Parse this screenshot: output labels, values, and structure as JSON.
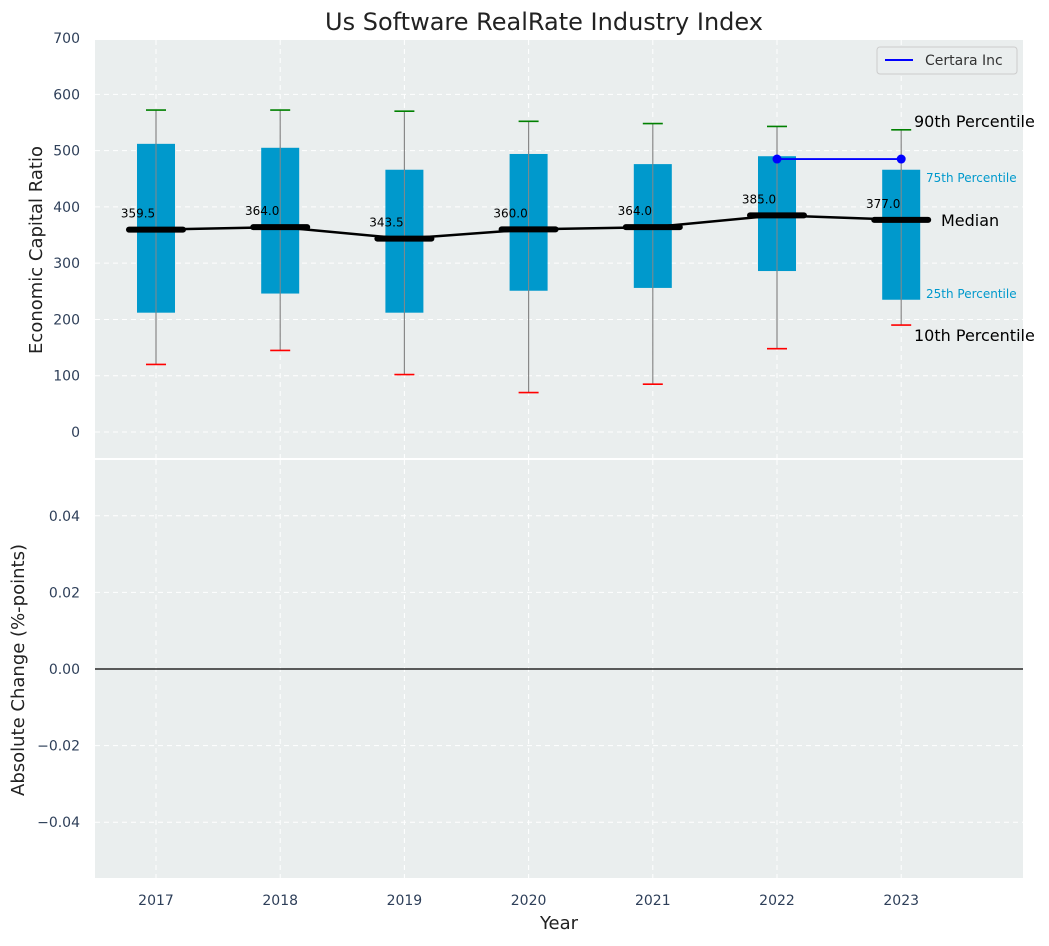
{
  "chart_data": [
    {
      "type": "box",
      "title": "Us Software RealRate Industry Index",
      "ylabel": "Economic Capital Ratio",
      "ylim": [
        -50,
        700
      ],
      "yticks": [
        "0",
        "100",
        "200",
        "300",
        "400",
        "500",
        "600",
        "700"
      ],
      "categories": [
        "2017",
        "2018",
        "2019",
        "2020",
        "2021",
        "2022",
        "2023"
      ],
      "p10": [
        120,
        145,
        102,
        70,
        85,
        148,
        190
      ],
      "p25": [
        212,
        246,
        212,
        251,
        256,
        286,
        235
      ],
      "median": [
        359.5,
        364.0,
        343.5,
        360.0,
        364.0,
        385.0,
        377.0
      ],
      "median_labels": [
        "359.5",
        "364.0",
        "343.5",
        "360.0",
        "364.0",
        "385.0",
        "377.0"
      ],
      "p75": [
        512,
        505,
        466,
        494,
        476,
        490,
        466
      ],
      "p90": [
        572,
        572,
        570,
        552,
        548,
        543,
        537
      ],
      "series": [
        {
          "name": "Certara Inc",
          "x": [
            "2022",
            "2023"
          ],
          "values": [
            485,
            485
          ],
          "color": "#0000ff"
        }
      ],
      "annotations": {
        "p90": "90th Percentile",
        "p75": "75th Percentile",
        "median": "Median",
        "p25": "25th Percentile",
        "p10": "10th Percentile"
      },
      "legend": "top-right",
      "grid": true
    },
    {
      "type": "line",
      "xlabel": "Year",
      "ylabel": "Absolute Change (%-points)",
      "ylim": [
        -0.055,
        0.055
      ],
      "yticks": [
        "−0.04",
        "−0.02",
        "0.00",
        "0.02",
        "0.04"
      ],
      "ytick_values": [
        -0.04,
        -0.02,
        0.0,
        0.02,
        0.04
      ],
      "categories": [
        "2017",
        "2018",
        "2019",
        "2020",
        "2021",
        "2022",
        "2023"
      ],
      "zero_line": true,
      "grid": true
    }
  ],
  "colors": {
    "panel_bg": "#eaeeee",
    "box": "#0099cc",
    "whisker": "#888888",
    "p90_cap": "#008000",
    "p10_cap": "#ff0000",
    "median_line": "#000000",
    "company": "#0000ff",
    "percentile_text": "#0099cc"
  }
}
